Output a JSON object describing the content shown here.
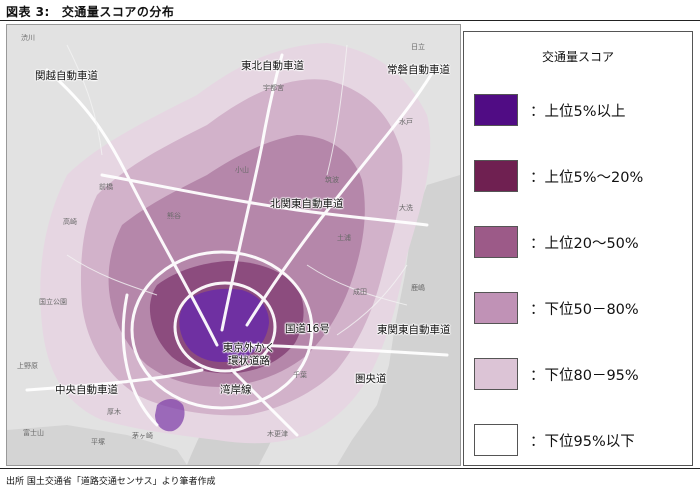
{
  "figure": {
    "number": "図表 3:",
    "title": "交通量スコアの分布"
  },
  "map": {
    "road_labels": [
      {
        "id": "kanetsu",
        "text": "関越自動車道"
      },
      {
        "id": "tohoku",
        "text": "東北自動車道"
      },
      {
        "id": "joban",
        "text": "常磐自動車道"
      },
      {
        "id": "kitakanto",
        "text": "北関東自動車道"
      },
      {
        "id": "route16",
        "text": "国道16号"
      },
      {
        "id": "higashikanto",
        "text": "東関東自動車道"
      },
      {
        "id": "gaikan",
        "text": "東京外かく\n環状道路"
      },
      {
        "id": "chuo",
        "text": "中央自動車道"
      },
      {
        "id": "wangan",
        "text": "湾岸線"
      },
      {
        "id": "kenodo",
        "text": "圏央道"
      }
    ],
    "place_labels": [
      "渋川",
      "前橋",
      "高崎",
      "宇都宮",
      "水戸",
      "日立",
      "大洗",
      "国立公園",
      "上野原",
      "厚木",
      "茅ヶ崎",
      "平塚",
      "千葉",
      "木更津",
      "成田",
      "鹿嶋",
      "土浦",
      "筑波",
      "小山",
      "熊谷",
      "富士山"
    ]
  },
  "legend": {
    "title": "交通量スコア",
    "items": [
      {
        "label": "：上位5%以上",
        "color": "#500c84"
      },
      {
        "label": "：上位5%～20%",
        "color": "#6f2051"
      },
      {
        "label": "：上位20～50%",
        "color": "#9c5a88"
      },
      {
        "label": "：下位50－80%",
        "color": "#c092b6"
      },
      {
        "label": "：下位80－95%",
        "color": "#dcc4d6"
      },
      {
        "label": "：下位95%以下",
        "color": "#ffffff"
      }
    ]
  },
  "source": "出所 国土交通省「道路交通センサス」より筆者作成"
}
